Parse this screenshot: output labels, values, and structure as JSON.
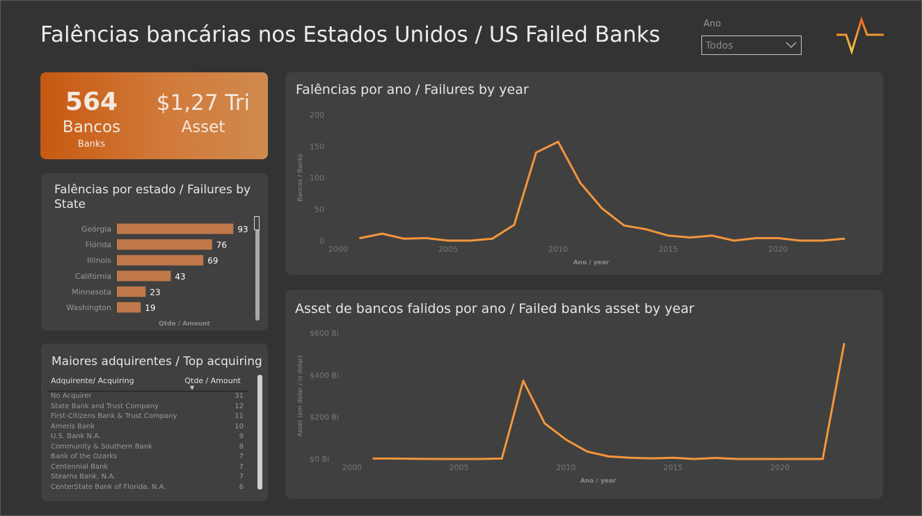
{
  "header": {
    "title": "Falências bancárias nos Estados Unidos / US Failed Banks",
    "slicer_label": "Ano",
    "slicer_value": "Todos"
  },
  "kpi": {
    "banks_value": "564",
    "banks_label": "Bancos",
    "banks_sub": "Banks",
    "asset_value": "$1,27 Tri",
    "asset_label": "Asset"
  },
  "state_panel": {
    "title": "Falências por estado / Failures by State",
    "axis_label": "Qtde / Amount"
  },
  "acquirers": {
    "title": "Maiores adquirentes / Top acquiring",
    "col1": "Adquirente/ Acquiring",
    "col2": "Qtde / Amount",
    "sort_glyph": "▼",
    "rows": [
      {
        "name": "No Acquirer",
        "count": "31"
      },
      {
        "name": "State Bank and Trust Company",
        "count": "12"
      },
      {
        "name": "First-Citizens Bank & Trust Company",
        "count": "11"
      },
      {
        "name": "Ameris Bank",
        "count": "10"
      },
      {
        "name": "U.S. Bank N.A.",
        "count": "9"
      },
      {
        "name": "Community & Southern Bank",
        "count": "8"
      },
      {
        "name": "Bank of the Ozarks",
        "count": "7"
      },
      {
        "name": "Centennial Bank",
        "count": "7"
      },
      {
        "name": "Stearns Bank, N.A.",
        "count": "7"
      },
      {
        "name": "CenterState Bank of Florida, N.A.",
        "count": "6"
      }
    ]
  },
  "colors": {
    "accent": "#f5953c",
    "bar": "#c0784a",
    "panel": "#404040",
    "background": "#333333"
  },
  "icons": {
    "logo": "pulse-check-logo-icon",
    "dropdown": "chevron-down-icon"
  },
  "chart_data": [
    {
      "type": "bar",
      "orientation": "horizontal",
      "title": "Falências por estado / Failures by State",
      "xlabel": "Qtde / Amount",
      "categories": [
        "Geórgia",
        "Flórida",
        "Illinois",
        "Califórnia",
        "Minnesota",
        "Washington"
      ],
      "values": [
        93,
        76,
        69,
        43,
        23,
        19
      ],
      "xlim": [
        0,
        100
      ]
    },
    {
      "type": "line",
      "title": "Falências por ano / Failures by year",
      "xlabel": "Ano / year",
      "ylabel": "Bancos / Banks",
      "x": [
        2001,
        2002,
        2003,
        2004,
        2005,
        2006,
        2007,
        2008,
        2009,
        2010,
        2011,
        2012,
        2013,
        2014,
        2015,
        2016,
        2017,
        2018,
        2019,
        2020,
        2021,
        2022,
        2023
      ],
      "values": [
        4,
        11,
        3,
        4,
        0,
        0,
        3,
        25,
        140,
        157,
        92,
        51,
        24,
        18,
        8,
        5,
        8,
        0,
        4,
        4,
        0,
        0,
        3
      ],
      "xlim": [
        2000,
        2023
      ],
      "ylim": [
        0,
        200
      ],
      "yticks": [
        "0",
        "50",
        "100",
        "150",
        "200"
      ],
      "xticks": [
        "2000",
        "2005",
        "2010",
        "2015",
        "2020"
      ],
      "grid": false
    },
    {
      "type": "line",
      "title": "Asset de bancos falidos por ano / Failed banks asset by year",
      "xlabel": "Ano / year",
      "ylabel": "Asset (em dolar / in dolar)",
      "x": [
        2001,
        2002,
        2003,
        2004,
        2005,
        2006,
        2007,
        2008,
        2009,
        2010,
        2011,
        2012,
        2013,
        2014,
        2015,
        2016,
        2017,
        2018,
        2019,
        2020,
        2021,
        2022,
        2023
      ],
      "values": [
        2,
        2,
        1,
        0,
        0,
        0,
        2,
        373,
        170,
        92,
        35,
        12,
        6,
        3,
        6,
        0,
        5,
        0,
        0,
        0,
        0,
        0,
        548
      ],
      "unit": "Bi",
      "xlim": [
        2000,
        2023
      ],
      "ylim": [
        0,
        600
      ],
      "yticks": [
        "$0 Bi",
        "$200 Bi",
        "$400 Bi",
        "$600 Bi"
      ],
      "xticks": [
        "2000",
        "2005",
        "2010",
        "2015",
        "2020"
      ],
      "grid": false
    }
  ]
}
